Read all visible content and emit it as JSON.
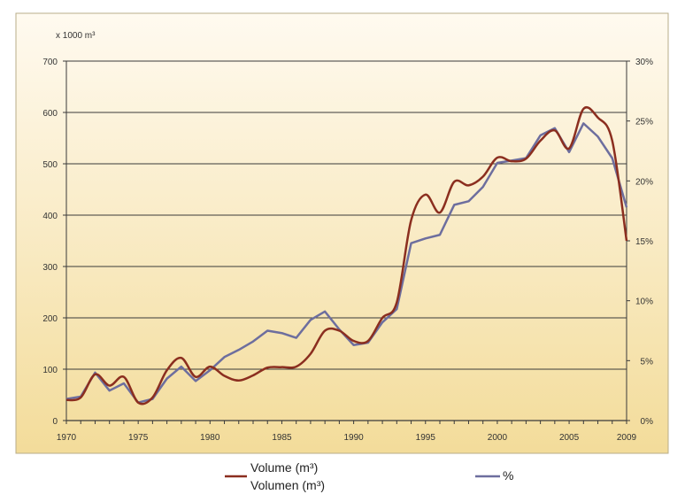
{
  "chart_data": {
    "type": "line",
    "title": "",
    "xlabel": "",
    "ylabel": "x 1000 m³",
    "ylim": [
      0,
      700
    ],
    "y2lim": [
      0,
      30
    ],
    "grid": true,
    "x_tick_labels": [
      "1970",
      "1975",
      "1980",
      "1985",
      "1990",
      "1995",
      "2000",
      "2005",
      "2009"
    ],
    "y_tick_labels": [
      "0",
      "100",
      "200",
      "300",
      "400",
      "500",
      "600",
      "700"
    ],
    "y2_tick_labels": [
      "0%",
      "5%",
      "10%",
      "15%",
      "20%",
      "25%",
      "30%"
    ],
    "x": [
      1970,
      1971,
      1972,
      1973,
      1974,
      1975,
      1976,
      1977,
      1978,
      1979,
      1980,
      1981,
      1982,
      1983,
      1984,
      1985,
      1986,
      1987,
      1988,
      1989,
      1990,
      1991,
      1992,
      1993,
      1994,
      1995,
      1996,
      1997,
      1998,
      1999,
      2000,
      2001,
      2002,
      2003,
      2004,
      2005,
      2006,
      2007,
      2008,
      2009
    ],
    "legend_position": "bottom",
    "series": [
      {
        "name_line1": "Volume (m³)",
        "name_line2": "Volumen (m³)",
        "axis": "left",
        "unit": "x 1000 m³",
        "color": "#8b2e1f",
        "values": [
          40,
          45,
          90,
          68,
          85,
          35,
          45,
          98,
          122,
          85,
          105,
          87,
          78,
          88,
          103,
          104,
          105,
          130,
          175,
          175,
          155,
          155,
          200,
          230,
          390,
          440,
          405,
          465,
          458,
          475,
          512,
          505,
          510,
          545,
          565,
          530,
          607,
          590,
          545,
          350
        ]
      },
      {
        "name": "%",
        "axis": "right",
        "unit": "%",
        "color": "#6d6e9e",
        "values": [
          1.8,
          2.0,
          4.0,
          2.5,
          3.1,
          1.5,
          1.8,
          3.5,
          4.5,
          3.3,
          4.2,
          5.3,
          5.9,
          6.6,
          7.5,
          7.3,
          6.9,
          8.4,
          9.1,
          7.6,
          6.3,
          6.5,
          8.2,
          9.3,
          14.8,
          15.2,
          15.5,
          18.0,
          18.3,
          19.5,
          21.5,
          21.7,
          21.9,
          23.8,
          24.4,
          22.4,
          24.8,
          23.7,
          21.9,
          17.8
        ]
      }
    ]
  }
}
